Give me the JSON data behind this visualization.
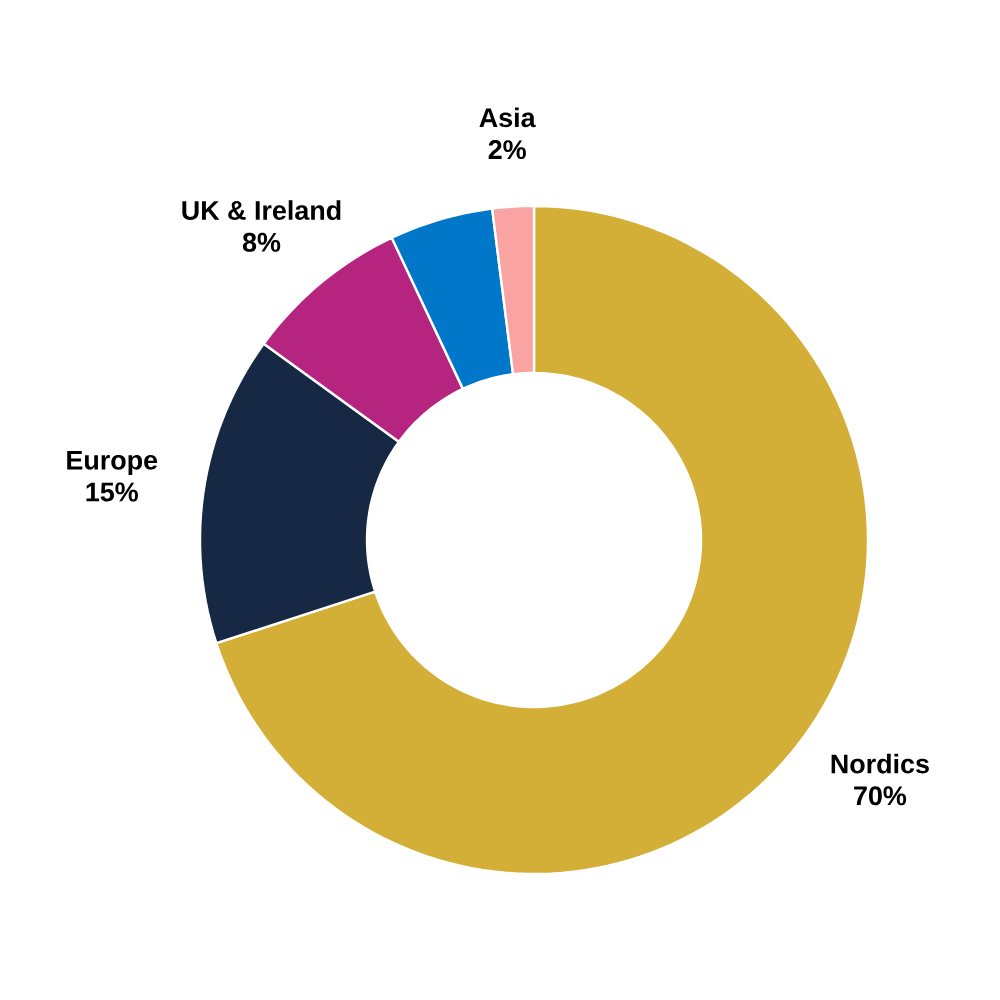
{
  "chart_data": {
    "type": "donut",
    "categories": [
      "Nordics",
      "Europe",
      "UK & Ireland",
      null,
      "Asia"
    ],
    "values": [
      70,
      15,
      8,
      5,
      2
    ],
    "value_labels": [
      "70%",
      "15%",
      "8%",
      null,
      "2%"
    ],
    "colors": [
      "#d4af37",
      "#172844",
      "#b5247f",
      "#0077c8",
      "#f9a3a3"
    ]
  }
}
